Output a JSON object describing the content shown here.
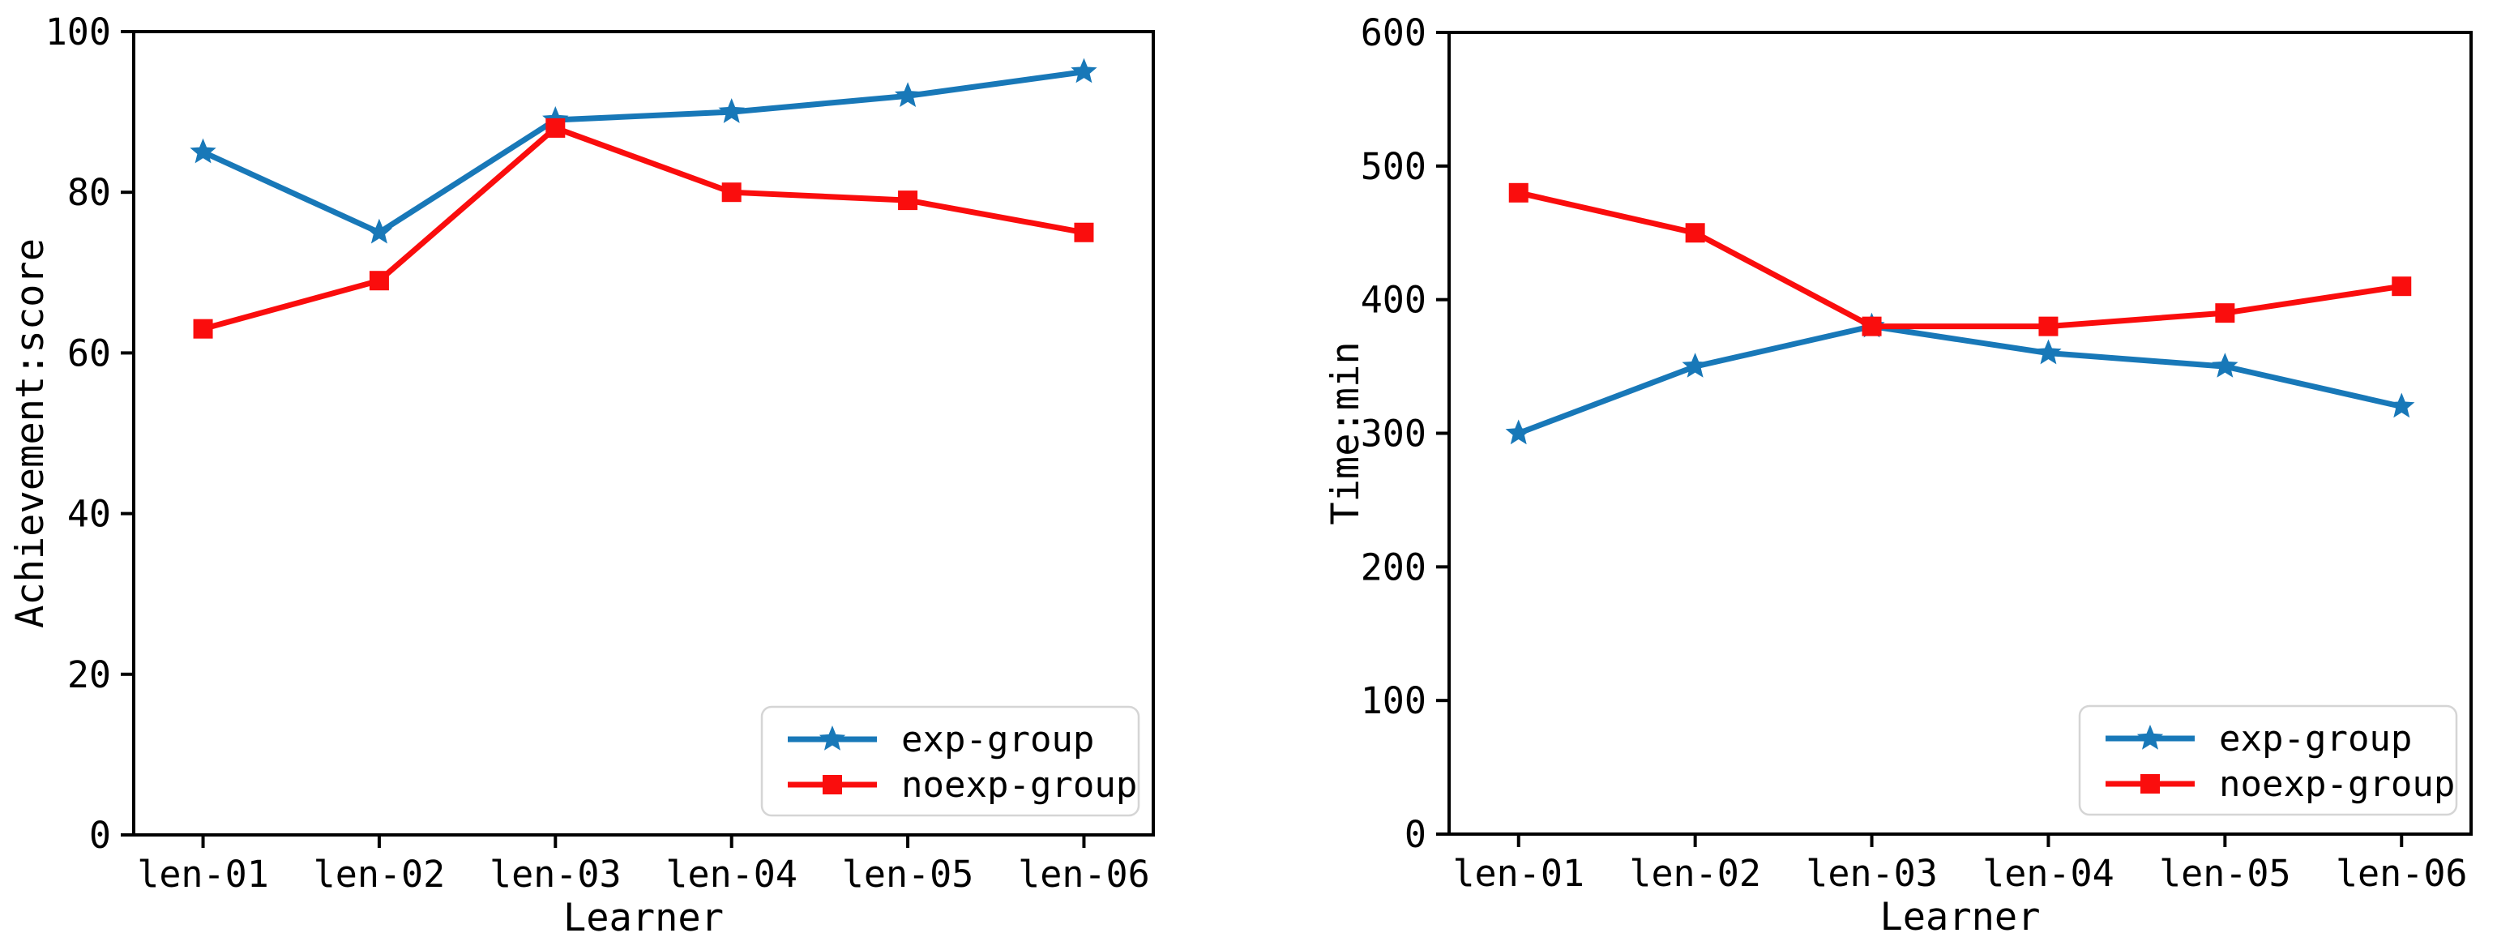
{
  "figure": {
    "background": "#ffffff",
    "text_color": "#000000",
    "axis_color": "#000000",
    "legend_border_color": "#d5d5d5"
  },
  "chart_data": [
    {
      "type": "line",
      "title": "",
      "xlabel": "Learner",
      "ylabel": "Achievement:score",
      "categories": [
        "len-01",
        "len-02",
        "len-03",
        "len-04",
        "len-05",
        "len-06"
      ],
      "ylim": [
        0,
        100
      ],
      "yticks": [
        0,
        20,
        40,
        60,
        80,
        100
      ],
      "grid": false,
      "legend_position": "lower right",
      "series": [
        {
          "name": "exp-group",
          "color": "#1878b8",
          "marker": "star",
          "values": [
            85,
            75,
            89,
            90,
            92,
            95
          ]
        },
        {
          "name": "noexp-group",
          "color": "#fa0d0d",
          "marker": "square",
          "values": [
            63,
            69,
            88,
            80,
            79,
            75
          ]
        }
      ]
    },
    {
      "type": "line",
      "title": "",
      "xlabel": "Learner",
      "ylabel": "Time:min",
      "categories": [
        "len-01",
        "len-02",
        "len-03",
        "len-04",
        "len-05",
        "len-06"
      ],
      "ylim": [
        0,
        600
      ],
      "yticks": [
        0,
        100,
        200,
        300,
        400,
        500,
        600
      ],
      "grid": false,
      "legend_position": "lower right",
      "series": [
        {
          "name": "exp-group",
          "color": "#1878b8",
          "marker": "star",
          "values": [
            300,
            350,
            380,
            360,
            350,
            320
          ]
        },
        {
          "name": "noexp-group",
          "color": "#fa0d0d",
          "marker": "square",
          "values": [
            480,
            450,
            380,
            380,
            390,
            410
          ]
        }
      ]
    }
  ]
}
